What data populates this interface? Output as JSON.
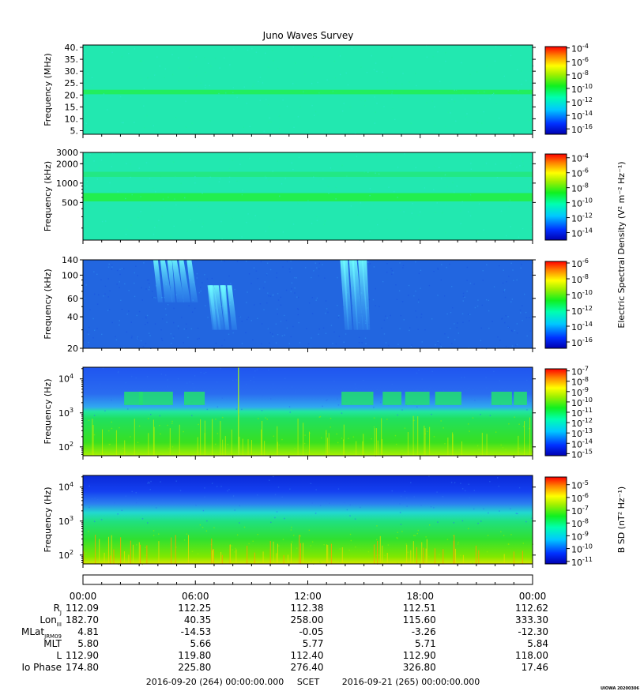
{
  "title": "Juno Waves Survey",
  "stamp": "UIOWA 20200306",
  "chart_data": [
    {
      "type": "heatmap",
      "name": "hfr-high",
      "ylabel": "Frequency (MHz)",
      "yscale": "linear",
      "ylim": [
        3.5,
        41
      ],
      "yticks": [
        {
          "v": 40,
          "label": "40."
        },
        {
          "v": 35,
          "label": "35."
        },
        {
          "v": 30,
          "label": "30."
        },
        {
          "v": 25,
          "label": "25."
        },
        {
          "v": 20,
          "label": "20."
        },
        {
          "v": 15,
          "label": "15."
        },
        {
          "v": 10,
          "label": "10."
        },
        {
          "v": 5,
          "label": "5."
        }
      ],
      "bands": [
        {
          "y0": 20.3,
          "y1": 22.2,
          "color": "#22ee55"
        }
      ],
      "base_color": "#22e8b0",
      "colorbar": {
        "ticks": [
          {
            "exp": "-4"
          },
          {
            "exp": "-6"
          },
          {
            "exp": "-8"
          },
          {
            "exp": "-10"
          },
          {
            "exp": "-12"
          },
          {
            "exp": "-14"
          },
          {
            "exp": "-16"
          }
        ],
        "zlim": [
          -16.8,
          -3.8
        ]
      }
    },
    {
      "type": "heatmap",
      "name": "hfr-low",
      "ylabel": "Frequency (kHz)",
      "yscale": "log",
      "ylim": [
        130,
        3000
      ],
      "yticks": [
        {
          "v": 3000,
          "label": "3000"
        },
        {
          "v": 2000,
          "label": "2000"
        },
        {
          "v": 1000,
          "label": "1000"
        },
        {
          "v": 500,
          "label": "500"
        }
      ],
      "bands": [
        {
          "y0": 1250,
          "y1": 1500,
          "color": "#22e880"
        },
        {
          "y0": 520,
          "y1": 700,
          "color": "#22ee44"
        }
      ],
      "base_color": "#22e8b0",
      "colorbar": {
        "ticks": [
          {
            "exp": "-4"
          },
          {
            "exp": "-6"
          },
          {
            "exp": "-8"
          },
          {
            "exp": "-10"
          },
          {
            "exp": "-12"
          },
          {
            "exp": "-14"
          }
        ],
        "zlim": [
          -15,
          -3.5
        ]
      }
    },
    {
      "type": "heatmap",
      "name": "lfr-high",
      "ylabel": "Frequency (kHz)",
      "yscale": "log",
      "ylim": [
        20,
        140
      ],
      "yticks": [
        {
          "v": 140,
          "label": "140"
        },
        {
          "v": 100,
          "label": "100"
        },
        {
          "v": 60,
          "label": "60"
        },
        {
          "v": 40,
          "label": "40"
        },
        {
          "v": 20,
          "label": "20"
        }
      ],
      "base_color": "#2266e0",
      "bursts": [
        {
          "t0": 3.7,
          "t1": 5.8,
          "f0": 55,
          "f1": 140
        },
        {
          "t0": 6.5,
          "t1": 7.8,
          "f0": 30,
          "f1": 80
        },
        {
          "t0": 13.6,
          "t1": 15.0,
          "f0": 30,
          "f1": 140
        }
      ],
      "colorbar": {
        "ticks": [
          {
            "exp": "-6"
          },
          {
            "exp": "-8"
          },
          {
            "exp": "-10"
          },
          {
            "exp": "-12"
          },
          {
            "exp": "-14"
          },
          {
            "exp": "-16"
          }
        ],
        "zlim": [
          -16.8,
          -5.8
        ]
      },
      "colorbar_label": "Electric Spectral Density (V² m⁻² Hz⁻¹)"
    },
    {
      "type": "heatmap",
      "name": "lfr-low",
      "ylabel": "Frequency (Hz)",
      "yscale": "log",
      "ylim": [
        55,
        22000
      ],
      "yticks": [
        {
          "v": 10000,
          "base": "10",
          "exp": "4"
        },
        {
          "v": 1000,
          "base": "10",
          "exp": "3"
        },
        {
          "v": 100,
          "base": "10",
          "exp": "2"
        }
      ],
      "colorbar": {
        "ticks": [
          {
            "exp": "-7"
          },
          {
            "exp": "-8"
          },
          {
            "exp": "-9"
          },
          {
            "exp": "-10"
          },
          {
            "exp": "-11"
          },
          {
            "exp": "-12"
          },
          {
            "exp": "-13"
          },
          {
            "exp": "-14"
          },
          {
            "exp": "-15"
          }
        ],
        "zlim": [
          -15.2,
          -6.8
        ]
      }
    },
    {
      "type": "heatmap",
      "name": "magnetic",
      "ylabel": "Frequency (Hz)",
      "yscale": "log",
      "ylim": [
        55,
        22000
      ],
      "yticks": [
        {
          "v": 10000,
          "base": "10",
          "exp": "4"
        },
        {
          "v": 1000,
          "base": "10",
          "exp": "3"
        },
        {
          "v": 100,
          "base": "10",
          "exp": "2"
        }
      ],
      "colorbar": {
        "ticks": [
          {
            "exp": "-5"
          },
          {
            "exp": "-6"
          },
          {
            "exp": "-7"
          },
          {
            "exp": "-8"
          },
          {
            "exp": "-9"
          },
          {
            "exp": "-10"
          },
          {
            "exp": "-11"
          }
        ],
        "zlim": [
          -11.2,
          -4.4
        ]
      },
      "colorbar_label": "B SD (nT² Hz⁻¹)"
    }
  ],
  "time_axis": {
    "xlim_hours": [
      0,
      24
    ],
    "major_labels": [
      {
        "h": 0,
        "label": "00:00"
      },
      {
        "h": 6,
        "label": "06:00"
      },
      {
        "h": 12,
        "label": "12:00"
      },
      {
        "h": 18,
        "label": "18:00"
      },
      {
        "h": 24,
        "label": "00:00"
      }
    ]
  },
  "ephemeris": [
    {
      "name": "Rj",
      "main": "R",
      "sub": "J",
      "values": [
        "112.09",
        "112.25",
        "112.38",
        "112.51",
        "112.62"
      ]
    },
    {
      "name": "Lon",
      "main": "Lon",
      "sub": "III",
      "values": [
        "182.70",
        "40.35",
        "258.00",
        "115.60",
        "333.30"
      ]
    },
    {
      "name": "MLat",
      "main": "MLat",
      "sub": "JRM09",
      "values": [
        "4.81",
        "-14.53",
        "-0.05",
        "-3.26",
        "-12.30"
      ]
    },
    {
      "name": "MLT",
      "main": "MLT",
      "sub": "",
      "values": [
        "5.80",
        "5.66",
        "5.77",
        "5.71",
        "5.84"
      ]
    },
    {
      "name": "L",
      "main": "L",
      "sub": "",
      "values": [
        "112.90",
        "119.80",
        "112.40",
        "112.90",
        "118.00"
      ]
    },
    {
      "name": "IoPhase",
      "main": "Io Phase",
      "sub": "",
      "values": [
        "174.80",
        "225.80",
        "276.40",
        "326.80",
        "17.46"
      ]
    }
  ],
  "footer": {
    "start": "2016-09-20 (264) 00:00:00.000",
    "scet": "SCET",
    "end": "2016-09-21 (265) 00:00:00.000"
  }
}
